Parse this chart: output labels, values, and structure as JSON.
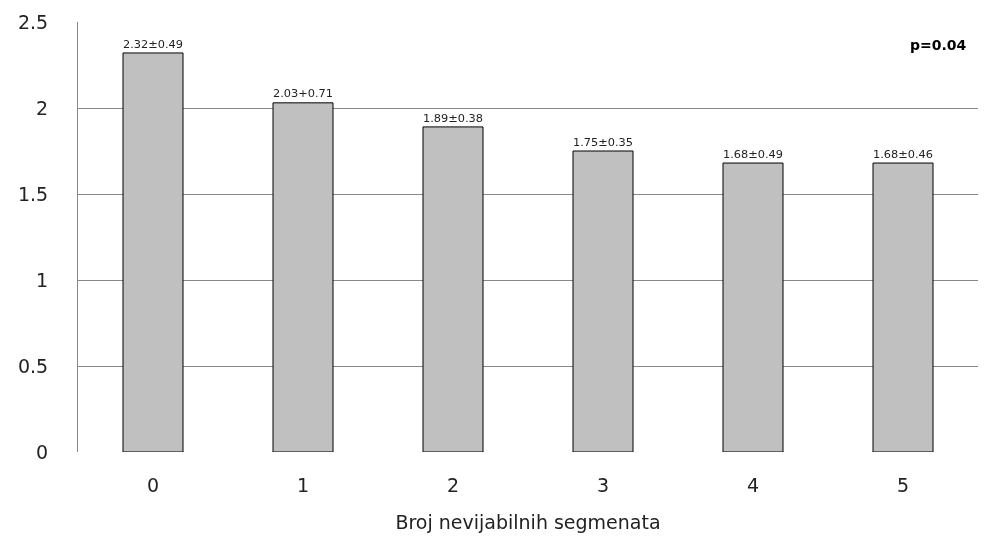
{
  "chart_data": {
    "type": "bar",
    "xlabel": "Broj nevijabilnih segmenata",
    "categories": [
      "0",
      "1",
      "2",
      "3",
      "4",
      "5"
    ],
    "values": [
      2.32,
      2.03,
      1.89,
      1.75,
      1.68,
      1.68
    ],
    "value_labels": [
      "2.32±0.49",
      "2.03+0.71",
      "1.89±0.38",
      "1.75±0.35",
      "1.68±0.49",
      "1.68±0.46"
    ],
    "color": "#c0c0c0",
    "ylim": [
      0,
      2.5
    ],
    "yticks": [
      0,
      0.5,
      1,
      1.5,
      2,
      2.5
    ],
    "grid": "y",
    "annotations": [
      "p=0.04"
    ]
  }
}
